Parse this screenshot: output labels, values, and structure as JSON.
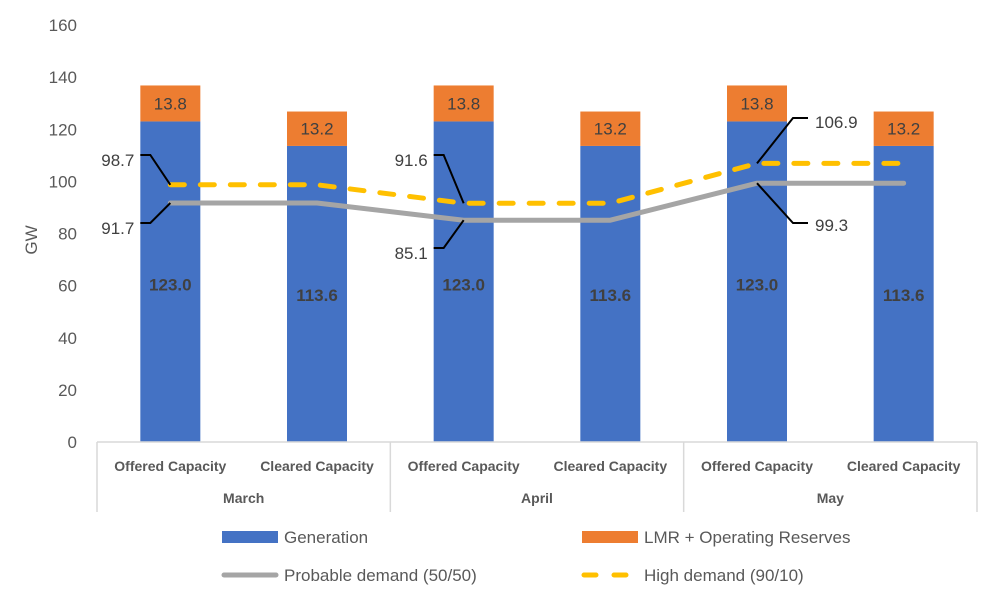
{
  "chart_data": {
    "type": "bar",
    "stacked": true,
    "title": "",
    "xlabel": "",
    "ylabel": "GW",
    "ylim": [
      0,
      160
    ],
    "yticks": [
      0,
      20,
      40,
      60,
      80,
      100,
      120,
      140,
      160
    ],
    "grid": false,
    "groups": [
      "March",
      "April",
      "May"
    ],
    "categories": [
      "Offered Capacity",
      "Cleared Capacity",
      "Offered Capacity",
      "Cleared Capacity",
      "Offered Capacity",
      "Cleared Capacity"
    ],
    "series": [
      {
        "name": "Generation",
        "kind": "bar",
        "color": "#4472C4",
        "values": [
          123.0,
          113.6,
          123.0,
          113.6,
          123.0,
          113.6
        ]
      },
      {
        "name": "LMR + Operating Reserves",
        "kind": "bar",
        "color": "#ED7D31",
        "values": [
          13.8,
          13.2,
          13.8,
          13.2,
          13.8,
          13.2
        ]
      },
      {
        "name": "Probable demand (50/50)",
        "kind": "line",
        "color": "#A5A5A5",
        "values": [
          91.7,
          91.7,
          85.1,
          85.1,
          99.3,
          99.3
        ]
      },
      {
        "name": "High demand (90/10)",
        "kind": "line",
        "dashed": true,
        "color": "#FFC000",
        "values": [
          98.7,
          98.7,
          91.6,
          91.6,
          106.9,
          106.9
        ]
      }
    ],
    "bar_labels": {
      "generation": [
        "123.0",
        "113.6",
        "123.0",
        "113.6",
        "123.0",
        "113.6"
      ],
      "reserves": [
        "13.8",
        "13.2",
        "13.8",
        "13.2",
        "13.8",
        "13.2"
      ]
    },
    "annotations": [
      {
        "text": "98.7",
        "series": "High demand (90/10)",
        "index": 0
      },
      {
        "text": "91.7",
        "series": "Probable demand (50/50)",
        "index": 0
      },
      {
        "text": "91.6",
        "series": "High demand (90/10)",
        "index": 2
      },
      {
        "text": "85.1",
        "series": "Probable demand (50/50)",
        "index": 2
      },
      {
        "text": "106.9",
        "series": "High demand (90/10)",
        "index": 4
      },
      {
        "text": "99.3",
        "series": "Probable demand (50/50)",
        "index": 4
      }
    ],
    "legend": {
      "placement": "bottom",
      "entries": [
        "Generation",
        "LMR + Operating Reserves",
        "Probable demand (50/50)",
        "High demand (90/10)"
      ]
    }
  }
}
